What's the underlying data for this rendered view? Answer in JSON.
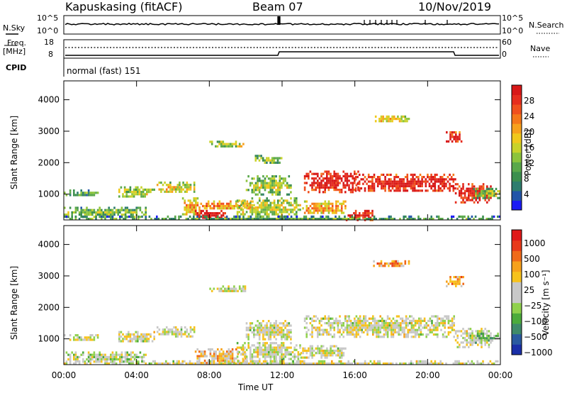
{
  "header": {
    "site": "Kapuskasing (fitACF)",
    "beam": "Beam 07",
    "date": "10/Nov/2019"
  },
  "top_panel": {
    "nsky_label": "N.Sky",
    "nsky_ticks": [
      "10^5",
      "10^0"
    ],
    "nsearch_label": "N.Search",
    "nsearch_ticks": [
      "10^5",
      "10^0"
    ],
    "freq_label_1": "Freq.",
    "freq_label_2": "[MHz]",
    "freq_ticks": [
      "18",
      "8"
    ],
    "nave_label": "Nave",
    "nave_ticks": [
      "60",
      "0"
    ],
    "cpid_label": "CPID",
    "cpid_value": "normal (fast) 151"
  },
  "chart_data": [
    {
      "type": "heatmap",
      "panel": "power",
      "ylabel": "Slant Range [km]",
      "xlabel": "Time UT",
      "x_ticks": [
        "00:00",
        "04:00",
        "08:00",
        "12:00",
        "16:00",
        "20:00",
        "00:00"
      ],
      "y_ticks": [
        "1000",
        "2000",
        "3000",
        "4000"
      ],
      "xlim_hours": [
        0,
        24
      ],
      "ylim_km": [
        180,
        4600
      ],
      "colorbar": {
        "label": "Power [dB]",
        "ticks": [
          "4",
          "8",
          "12",
          "16",
          "20",
          "24",
          "28"
        ],
        "colors": [
          "#1b1bf5",
          "#2255a8",
          "#2e7d6e",
          "#3c8f4e",
          "#5aa84a",
          "#8cc43c",
          "#c8d22a",
          "#f0c81c",
          "#f7a11c",
          "#f5781a",
          "#f0501e",
          "#e62d1e",
          "#d81818"
        ]
      },
      "regions": [
        {
          "t0": 0.0,
          "t1": 2.0,
          "r0": 950,
          "r1": 1150,
          "level": 0.25
        },
        {
          "t0": 0.0,
          "t1": 4.5,
          "r0": 300,
          "r1": 600,
          "level": 0.3
        },
        {
          "t0": 3.0,
          "t1": 5.0,
          "r0": 900,
          "r1": 1250,
          "level": 0.35
        },
        {
          "t0": 5.0,
          "t1": 7.2,
          "r0": 1050,
          "r1": 1400,
          "level": 0.45
        },
        {
          "t0": 6.5,
          "t1": 7.5,
          "r0": 350,
          "r1": 900,
          "level": 0.55
        },
        {
          "t0": 7.2,
          "t1": 9.0,
          "r0": 230,
          "r1": 500,
          "level": 0.9
        },
        {
          "t0": 7.5,
          "t1": 10.5,
          "r0": 550,
          "r1": 800,
          "level": 0.6
        },
        {
          "t0": 8.0,
          "t1": 10.0,
          "r0": 2500,
          "r1": 2700,
          "level": 0.4
        },
        {
          "t0": 9.5,
          "t1": 13.0,
          "r0": 300,
          "r1": 900,
          "level": 0.4
        },
        {
          "t0": 10.0,
          "t1": 12.5,
          "r0": 1000,
          "r1": 1600,
          "level": 0.35
        },
        {
          "t0": 10.5,
          "t1": 12.0,
          "r0": 2000,
          "r1": 2250,
          "level": 0.3
        },
        {
          "t0": 13.2,
          "t1": 16.2,
          "r0": 1100,
          "r1": 1750,
          "level": 0.85
        },
        {
          "t0": 13.0,
          "t1": 15.5,
          "r0": 400,
          "r1": 800,
          "level": 0.55
        },
        {
          "t0": 15.5,
          "t1": 17.0,
          "r0": 200,
          "r1": 500,
          "level": 0.85
        },
        {
          "t0": 16.0,
          "t1": 21.5,
          "r0": 1100,
          "r1": 1650,
          "level": 0.85
        },
        {
          "t0": 17.0,
          "t1": 19.0,
          "r0": 3300,
          "r1": 3500,
          "level": 0.5
        },
        {
          "t0": 21.0,
          "t1": 22.0,
          "r0": 2650,
          "r1": 3000,
          "level": 0.85
        },
        {
          "t0": 21.5,
          "t1": 23.5,
          "r0": 750,
          "r1": 1350,
          "level": 0.85
        },
        {
          "t0": 22.5,
          "t1": 24.0,
          "r0": 900,
          "r1": 1200,
          "level": 0.35
        },
        {
          "t0": 0.0,
          "t1": 24.0,
          "r0": 180,
          "r1": 320,
          "level": 0.2
        }
      ]
    },
    {
      "type": "heatmap",
      "panel": "velocity",
      "ylabel": "Slant Range [km]",
      "xlabel": "Time UT",
      "x_ticks": [
        "00:00",
        "04:00",
        "08:00",
        "12:00",
        "16:00",
        "20:00",
        "00:00"
      ],
      "y_ticks": [
        "1000",
        "2000",
        "3000",
        "4000"
      ],
      "xlim_hours": [
        0,
        24
      ],
      "ylim_km": [
        180,
        4600
      ],
      "colorbar": {
        "label": "Velocity [m s⁻¹]",
        "ticks": [
          "1000",
          "500",
          "100",
          "25",
          "−25",
          "−100",
          "−500",
          "−1000"
        ],
        "colors": [
          "#1a2fa8",
          "#2a5aa0",
          "#3f8a6a",
          "#4cab3c",
          "#90d14c",
          "#c8c8c8",
          "#c8c8c8",
          "#f7c21c",
          "#f7a11c",
          "#f06a1a",
          "#e83a1a",
          "#e01818"
        ]
      },
      "regions": [
        {
          "t0": 0.0,
          "t1": 2.0,
          "r0": 950,
          "r1": 1150,
          "level": 0.5
        },
        {
          "t0": 0.0,
          "t1": 4.5,
          "r0": 280,
          "r1": 600,
          "level": 0.45
        },
        {
          "t0": 3.0,
          "t1": 5.0,
          "r0": 900,
          "r1": 1250,
          "level": 0.5
        },
        {
          "t0": 5.0,
          "t1": 7.2,
          "r0": 1050,
          "r1": 1400,
          "level": 0.5
        },
        {
          "t0": 7.2,
          "t1": 10.0,
          "r0": 230,
          "r1": 700,
          "level": 0.62
        },
        {
          "t0": 8.0,
          "t1": 10.0,
          "r0": 2500,
          "r1": 2700,
          "level": 0.5
        },
        {
          "t0": 9.5,
          "t1": 13.0,
          "r0": 300,
          "r1": 900,
          "level": 0.5
        },
        {
          "t0": 10.0,
          "t1": 12.5,
          "r0": 1000,
          "r1": 1600,
          "level": 0.5
        },
        {
          "t0": 13.2,
          "t1": 21.5,
          "r0": 1100,
          "r1": 1750,
          "level": 0.5
        },
        {
          "t0": 13.0,
          "t1": 15.5,
          "r0": 400,
          "r1": 800,
          "level": 0.5
        },
        {
          "t0": 17.0,
          "t1": 19.0,
          "r0": 3300,
          "r1": 3500,
          "level": 0.7
        },
        {
          "t0": 21.0,
          "t1": 22.0,
          "r0": 2650,
          "r1": 3000,
          "level": 0.7
        },
        {
          "t0": 21.5,
          "t1": 23.5,
          "r0": 750,
          "r1": 1350,
          "level": 0.5
        },
        {
          "t0": 22.5,
          "t1": 24.0,
          "r0": 900,
          "r1": 1200,
          "level": 0.35
        },
        {
          "t0": 0.0,
          "t1": 24.0,
          "r0": 180,
          "r1": 320,
          "level": 0.5
        }
      ]
    }
  ]
}
